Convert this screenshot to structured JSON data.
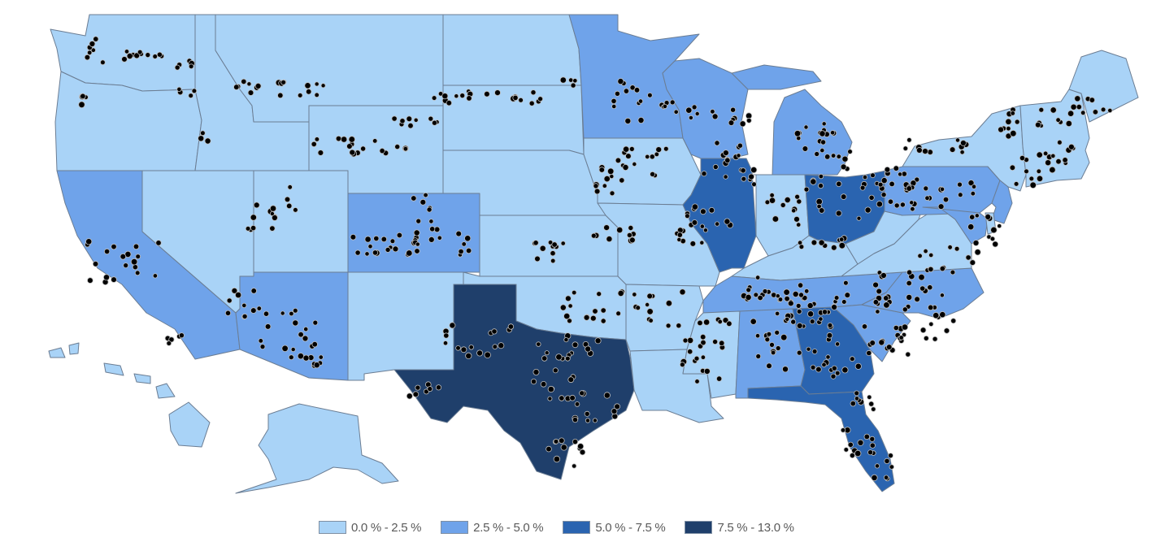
{
  "legend": {
    "title": "",
    "bins": [
      {
        "label": "0.0 % - 2.5 %",
        "color": "#a9d3f7"
      },
      {
        "label": "2.5 % - 5.0 %",
        "color": "#6fa3ea"
      },
      {
        "label": "5.0 % - 7.5 %",
        "color": "#2a64b0"
      },
      {
        "label": "7.5 % - 13.0 %",
        "color": "#1f3f6b"
      }
    ]
  },
  "states": [
    {
      "id": "WA",
      "bin": 0
    },
    {
      "id": "OR",
      "bin": 0
    },
    {
      "id": "CA",
      "bin": 1
    },
    {
      "id": "ID",
      "bin": 0
    },
    {
      "id": "NV",
      "bin": 0
    },
    {
      "id": "MT",
      "bin": 0
    },
    {
      "id": "WY",
      "bin": 0
    },
    {
      "id": "UT",
      "bin": 0
    },
    {
      "id": "AZ",
      "bin": 1
    },
    {
      "id": "CO",
      "bin": 1
    },
    {
      "id": "NM",
      "bin": 0
    },
    {
      "id": "ND",
      "bin": 0
    },
    {
      "id": "SD",
      "bin": 0
    },
    {
      "id": "NE",
      "bin": 0
    },
    {
      "id": "KS",
      "bin": 0
    },
    {
      "id": "OK",
      "bin": 0
    },
    {
      "id": "TX",
      "bin": 3
    },
    {
      "id": "MN",
      "bin": 1
    },
    {
      "id": "IA",
      "bin": 0
    },
    {
      "id": "MO",
      "bin": 0
    },
    {
      "id": "AR",
      "bin": 0
    },
    {
      "id": "LA",
      "bin": 0
    },
    {
      "id": "WI",
      "bin": 1
    },
    {
      "id": "IL",
      "bin": 2
    },
    {
      "id": "MI",
      "bin": 1
    },
    {
      "id": "IN",
      "bin": 0
    },
    {
      "id": "OH",
      "bin": 2
    },
    {
      "id": "KY",
      "bin": 0
    },
    {
      "id": "TN",
      "bin": 1
    },
    {
      "id": "MS",
      "bin": 0
    },
    {
      "id": "AL",
      "bin": 1
    },
    {
      "id": "GA",
      "bin": 2
    },
    {
      "id": "FL",
      "bin": 2
    },
    {
      "id": "SC",
      "bin": 1
    },
    {
      "id": "NC",
      "bin": 1
    },
    {
      "id": "VA",
      "bin": 0
    },
    {
      "id": "WV",
      "bin": 0
    },
    {
      "id": "PA",
      "bin": 1
    },
    {
      "id": "NY",
      "bin": 0
    },
    {
      "id": "NJ",
      "bin": 1
    },
    {
      "id": "MD",
      "bin": 1
    },
    {
      "id": "DE",
      "bin": 0
    },
    {
      "id": "NE_REGION",
      "bin": 0
    },
    {
      "id": "ME",
      "bin": 0
    },
    {
      "id": "AK",
      "bin": 0
    },
    {
      "id": "HI",
      "bin": 0
    }
  ]
}
